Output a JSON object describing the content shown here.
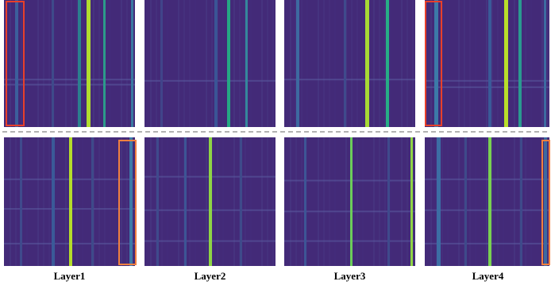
{
  "labels": [
    "Layer1",
    "Layer2",
    "Layer3",
    "Layer4"
  ]
}
